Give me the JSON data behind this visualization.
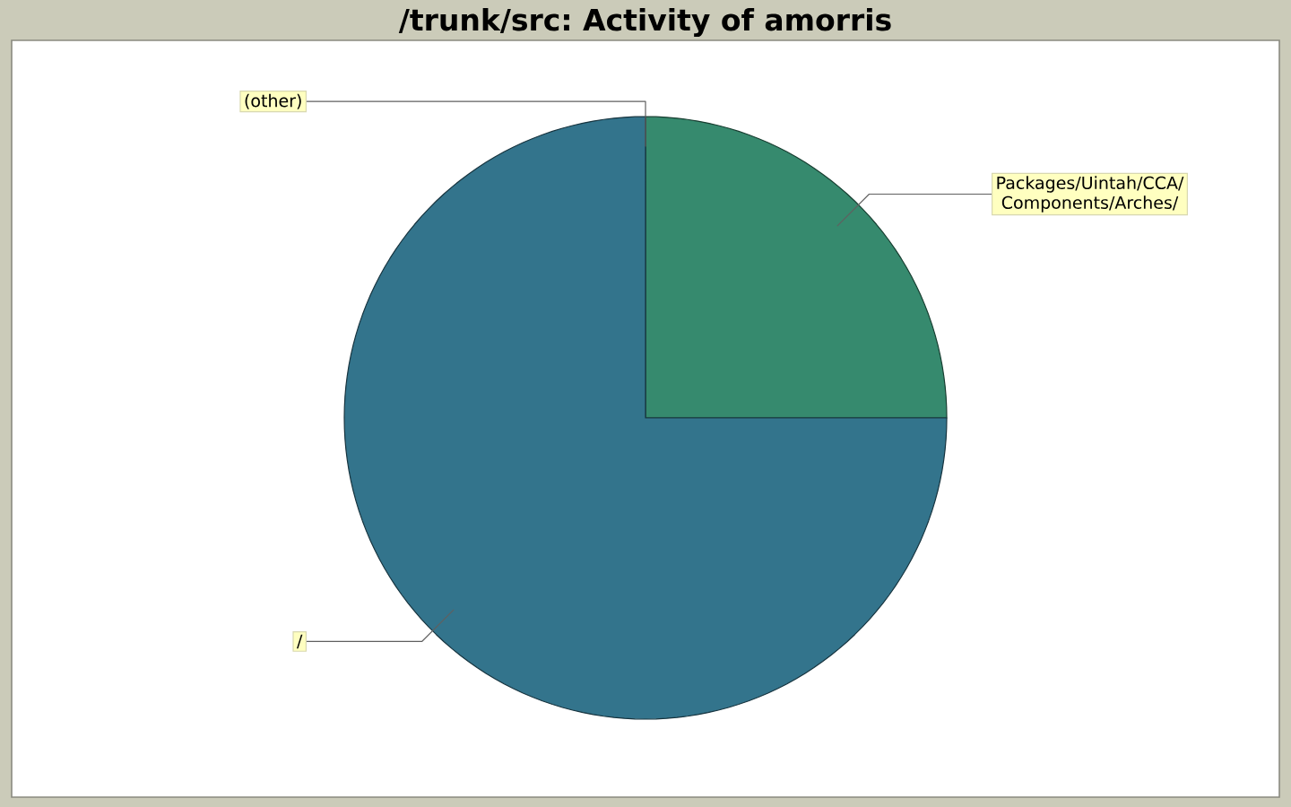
{
  "chart_data": {
    "type": "pie",
    "title": "/trunk/src: Activity of amorris",
    "categories": [
      "Packages/Uintah/CCA/Components/Arches/",
      "/",
      "(other)"
    ],
    "values": [
      25,
      75,
      0
    ],
    "colors": [
      "#368a6e",
      "#33748c",
      "#333333"
    ]
  }
}
